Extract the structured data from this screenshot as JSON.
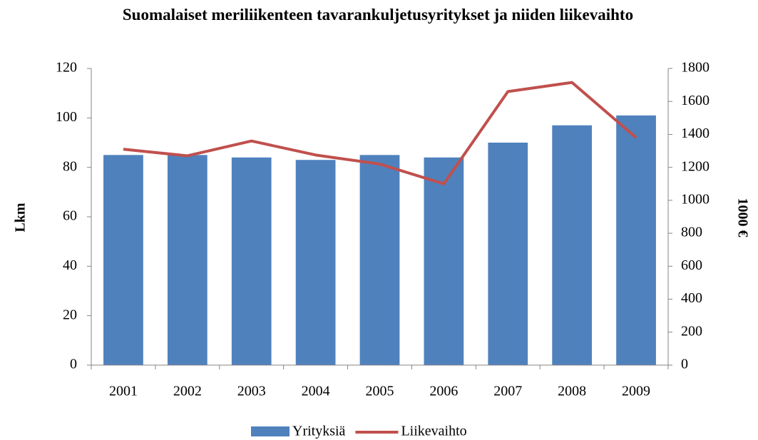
{
  "chart_data": {
    "type": "bar",
    "title": "Suomalaiset meriliikenteen tavarankuljetusyritykset ja niiden liikevaihto",
    "ylabel": "Lkm",
    "y2label": "1000 €",
    "categories": [
      "2001",
      "2002",
      "2003",
      "2004",
      "2005",
      "2006",
      "2007",
      "2008",
      "2009"
    ],
    "series": [
      {
        "name": "Yrityksiä",
        "type": "bar",
        "color": "#4f81bd",
        "values": [
          85,
          85,
          84,
          83,
          85,
          84,
          90,
          97,
          101
        ]
      },
      {
        "name": "Liikevaihto",
        "type": "line",
        "axis": "y2",
        "color": "#c0504d",
        "values": [
          1310,
          1270,
          1360,
          1275,
          1220,
          1100,
          1660,
          1715,
          1380
        ]
      }
    ],
    "ylim": [
      0,
      120
    ],
    "yticks": [
      0,
      20,
      40,
      60,
      80,
      100,
      120
    ],
    "y2lim": [
      0,
      1800
    ],
    "y2ticks": [
      0,
      200,
      400,
      600,
      800,
      1000,
      1200,
      1400,
      1600,
      1800
    ],
    "grid": false,
    "legend": "bottom"
  }
}
